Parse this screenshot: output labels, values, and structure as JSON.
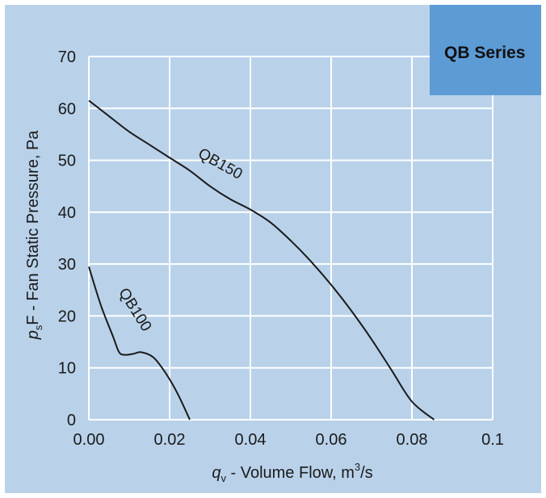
{
  "colors": {
    "background": "#b9d2ea",
    "badge": "#5d9bd5",
    "grid": "#ffffff",
    "curve": "#1a1a1a"
  },
  "badge": {
    "text": "QB Series"
  },
  "axes": {
    "ylabel": {
      "main": "F - Fan Static Pressure, Pa",
      "prefix": "p",
      "subscript": "s"
    },
    "xlabel": {
      "var": "q",
      "subscript": "v",
      "main": " - Volume Flow, m",
      "superscript": "3",
      "suffix": "/s"
    }
  },
  "chart_data": {
    "type": "line",
    "xlim": [
      0,
      0.1
    ],
    "ylim": [
      0,
      70
    ],
    "grid": true,
    "x_ticks": [
      "0.00",
      "0.02",
      "0.04",
      "0.06",
      "0.08",
      "0.1"
    ],
    "y_ticks": [
      "0",
      "10",
      "20",
      "30",
      "40",
      "50",
      "60",
      "70"
    ],
    "series": [
      {
        "name": "QB100",
        "points": [
          [
            0.0,
            29.5
          ],
          [
            0.003,
            22
          ],
          [
            0.006,
            16
          ],
          [
            0.0075,
            13
          ],
          [
            0.009,
            12.5
          ],
          [
            0.011,
            12.7
          ],
          [
            0.013,
            13
          ],
          [
            0.016,
            12
          ],
          [
            0.019,
            9
          ],
          [
            0.022,
            5
          ],
          [
            0.025,
            0
          ]
        ]
      },
      {
        "name": "QB150",
        "points": [
          [
            0.0,
            61.5
          ],
          [
            0.005,
            58.5
          ],
          [
            0.01,
            55.5
          ],
          [
            0.015,
            53
          ],
          [
            0.02,
            50.5
          ],
          [
            0.025,
            48
          ],
          [
            0.03,
            45
          ],
          [
            0.035,
            42.5
          ],
          [
            0.04,
            40.5
          ],
          [
            0.045,
            38
          ],
          [
            0.05,
            34.5
          ],
          [
            0.055,
            30.5
          ],
          [
            0.06,
            26
          ],
          [
            0.065,
            21
          ],
          [
            0.07,
            15.5
          ],
          [
            0.075,
            9.5
          ],
          [
            0.08,
            3.5
          ],
          [
            0.0855,
            0
          ]
        ]
      }
    ]
  }
}
